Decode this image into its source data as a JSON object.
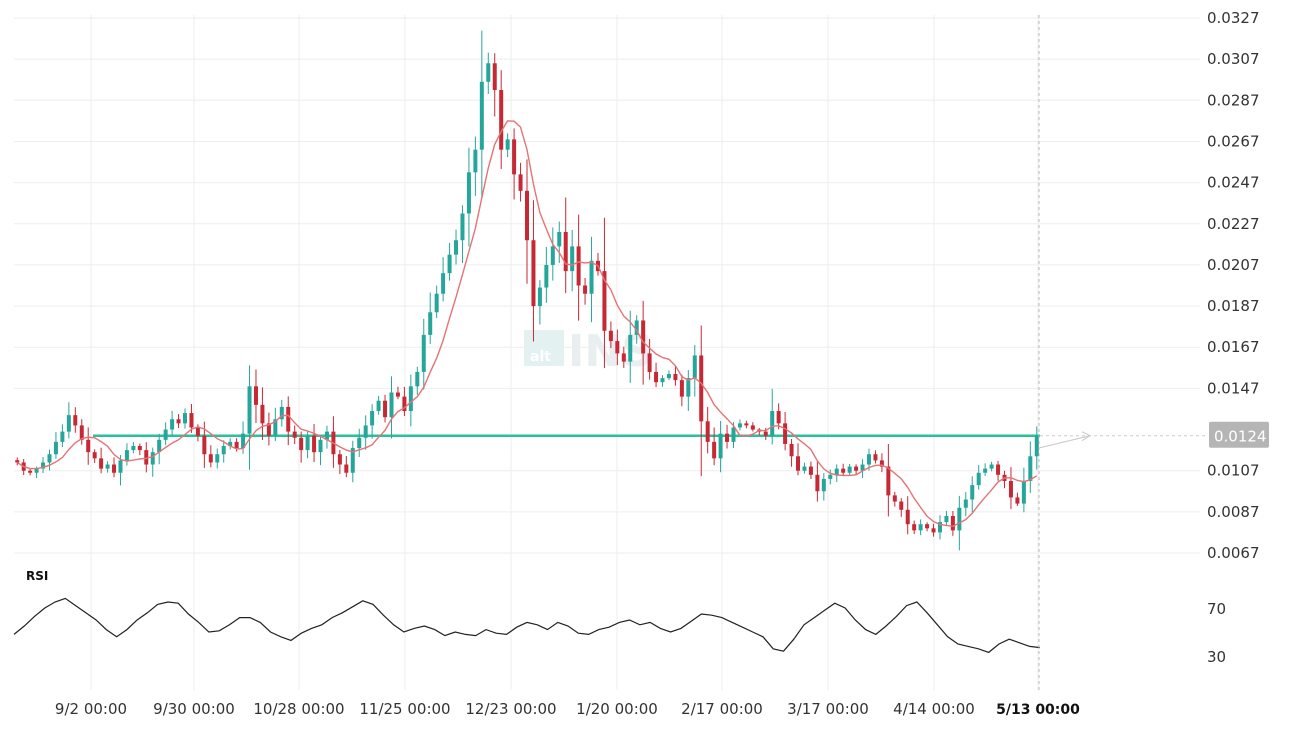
{
  "chart_data": {
    "type": "candlestick",
    "x_ticks": [
      "9/2 00:00",
      "9/30 00:00",
      "10/28 00:00",
      "11/25 00:00",
      "12/23 00:00",
      "1/20 00:00",
      "2/17 00:00",
      "3/17 00:00",
      "4/14 00:00",
      "5/13 00:00"
    ],
    "y_ticks": [
      "0.0327",
      "0.0307",
      "0.0287",
      "0.0267",
      "0.0247",
      "0.0227",
      "0.0207",
      "0.0187",
      "0.0167",
      "0.0147",
      "0.0107",
      "0.0087",
      "0.0067"
    ],
    "ylim": [
      0.0067,
      0.0327
    ],
    "last_price_label": "0.0124",
    "horizontal_level": 0.0124,
    "colors": {
      "up": "#26a69a",
      "down": "#c62834",
      "ma": "#e57373",
      "level": "#2bbf9f",
      "rsi": "#222222",
      "grid": "#eeeeee",
      "price_tag": "#b5b5b5"
    },
    "watermark": {
      "small": "alt",
      "big": "INS"
    },
    "series": [
      {
        "kind": "price",
        "start": "8/22 00:00",
        "close": [
          0.0111,
          0.0107,
          0.0106,
          0.0108,
          0.0111,
          0.0115,
          0.0121,
          0.0126,
          0.0134,
          0.0129,
          0.0122,
          0.0116,
          0.0113,
          0.0108,
          0.011,
          0.0106,
          0.0112,
          0.0117,
          0.0119,
          0.0117,
          0.011,
          0.0116,
          0.0122,
          0.0127,
          0.0132,
          0.013,
          0.0135,
          0.0128,
          0.0124,
          0.0115,
          0.0111,
          0.0115,
          0.0119,
          0.0121,
          0.0118,
          0.0125,
          0.0148,
          0.0139,
          0.013,
          0.0124,
          0.0132,
          0.0138,
          0.0126,
          0.0123,
          0.0117,
          0.0124,
          0.0116,
          0.0122,
          0.0126,
          0.0115,
          0.011,
          0.0106,
          0.0118,
          0.0123,
          0.0129,
          0.0136,
          0.0141,
          0.0133,
          0.0145,
          0.0143,
          0.0136,
          0.0148,
          0.0155,
          0.0173,
          0.0184,
          0.0193,
          0.0203,
          0.0212,
          0.0219,
          0.0232,
          0.0252,
          0.0263,
          0.0296,
          0.0305,
          0.0292,
          0.0263,
          0.0268,
          0.0251,
          0.0243,
          0.0219,
          0.0187,
          0.0196,
          0.0207,
          0.0216,
          0.0223,
          0.0204,
          0.0216,
          0.0197,
          0.0193,
          0.0209,
          0.0204,
          0.0175,
          0.017,
          0.0164,
          0.016,
          0.0173,
          0.018,
          0.0164,
          0.0155,
          0.015,
          0.0152,
          0.0154,
          0.0151,
          0.0143,
          0.0152,
          0.0163,
          0.0131,
          0.0121,
          0.0113,
          0.0125,
          0.0121,
          0.0128,
          0.013,
          0.0129,
          0.0127,
          0.0126,
          0.0124,
          0.0136,
          0.013,
          0.012,
          0.0114,
          0.0107,
          0.0109,
          0.0105,
          0.0097,
          0.0103,
          0.0105,
          0.0108,
          0.0106,
          0.0109,
          0.0107,
          0.011,
          0.0115,
          0.0112,
          0.0109,
          0.0095,
          0.0092,
          0.0088,
          0.0081,
          0.0078,
          0.0081,
          0.0079,
          0.0077,
          0.0082,
          0.0085,
          0.0078,
          0.0089,
          0.0093,
          0.01,
          0.0106,
          0.0108,
          0.011,
          0.0105,
          0.0102,
          0.0094,
          0.0091,
          0.0102,
          0.0114,
          0.0124
        ]
      },
      {
        "kind": "rsi",
        "name": "RSI",
        "levels": [
          70,
          30
        ],
        "values": [
          48,
          55,
          63,
          70,
          75,
          78,
          72,
          66,
          60,
          52,
          46,
          52,
          60,
          66,
          73,
          75,
          74,
          65,
          58,
          50,
          51,
          56,
          62,
          62,
          58,
          50,
          46,
          43,
          49,
          53,
          56,
          62,
          66,
          71,
          76,
          73,
          64,
          56,
          50,
          53,
          55,
          52,
          47,
          50,
          48,
          47,
          52,
          49,
          48,
          54,
          58,
          56,
          52,
          58,
          55,
          49,
          48,
          52,
          54,
          58,
          60,
          56,
          58,
          53,
          50,
          53,
          59,
          65,
          64,
          62,
          58,
          54,
          50,
          46,
          36,
          34,
          44,
          56,
          62,
          68,
          74,
          70,
          60,
          52,
          48,
          55,
          63,
          72,
          75,
          66,
          56,
          46,
          40,
          38,
          36,
          33,
          40,
          44,
          41,
          38,
          37
        ]
      }
    ]
  }
}
